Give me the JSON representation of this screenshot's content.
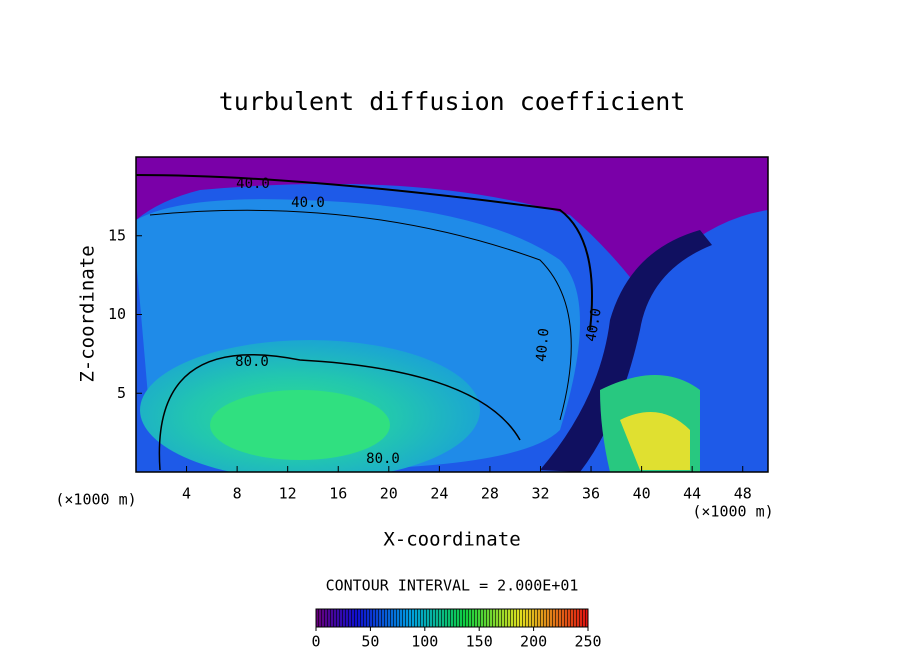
{
  "chart_data": {
    "type": "contour",
    "title": "turbulent diffusion coefficient",
    "xlabel": "X-coordinate",
    "ylabel": "Z-coordinate",
    "unit_labels": [
      "(×1000 m)",
      "(×1000 m)"
    ],
    "xlim": [
      0,
      50
    ],
    "xticks": [
      4,
      8,
      12,
      16,
      20,
      24,
      28,
      32,
      36,
      40,
      44,
      48
    ],
    "ylim": [
      0,
      20
    ],
    "yticks": [
      5,
      10,
      15
    ],
    "contour_labels": [
      {
        "value": 40,
        "label": "40.0"
      },
      {
        "value": 40,
        "label": "40.0"
      },
      {
        "value": 80,
        "label": "80.0"
      },
      {
        "value": 80,
        "label": "80.0"
      },
      {
        "value": 40,
        "label": "40.0"
      },
      {
        "value": 40,
        "label": "40.0"
      }
    ],
    "contour_interval": "CONTOUR INTERVAL = 2.000E+01",
    "colorbar_lim": [
      0,
      250
    ],
    "colorbar_ticks": [
      0,
      50,
      100,
      150,
      200,
      250
    ]
  }
}
